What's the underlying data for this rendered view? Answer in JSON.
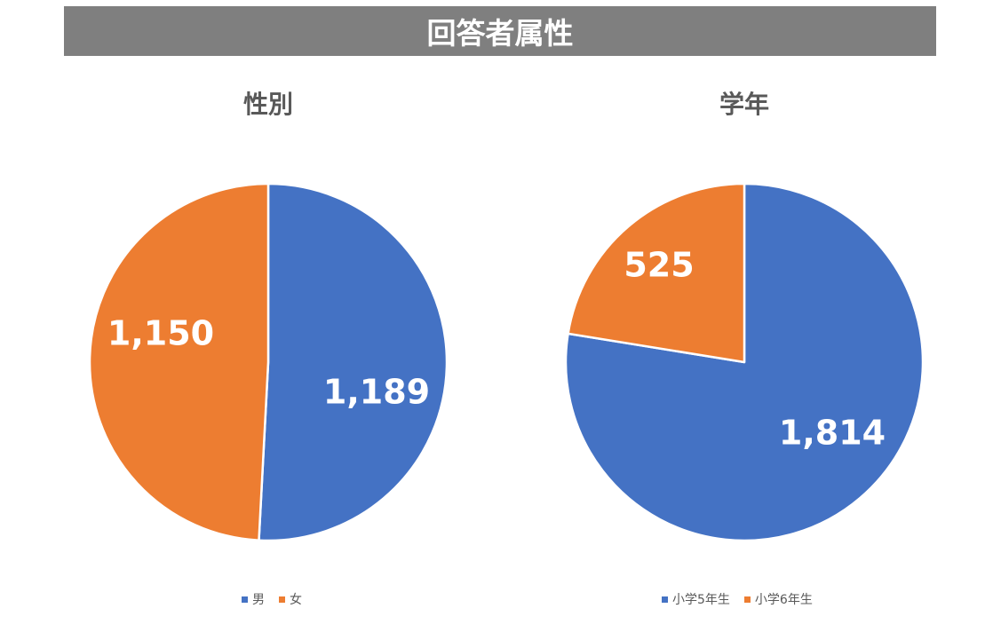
{
  "header": {
    "title": "回答者属性"
  },
  "colors": {
    "blue": "#4472c4",
    "orange": "#ed7d31",
    "banner": "#7f7f7f",
    "label": "#ffffff"
  },
  "chart_data": [
    {
      "type": "pie",
      "title": "性別",
      "categories": [
        "男",
        "女"
      ],
      "values": [
        1189,
        1150
      ],
      "data_labels": [
        "1,189",
        "1,150"
      ],
      "colors": [
        "#4472c4",
        "#ed7d31"
      ],
      "start_angle_deg": 0,
      "direction": "clockwise",
      "legend_position": "bottom"
    },
    {
      "type": "pie",
      "title": "学年",
      "categories": [
        "小学5年生",
        "小学6年生"
      ],
      "values": [
        1814,
        525
      ],
      "data_labels": [
        "1,814",
        "525"
      ],
      "colors": [
        "#4472c4",
        "#ed7d31"
      ],
      "start_angle_deg": 0,
      "direction": "clockwise",
      "legend_position": "bottom"
    }
  ]
}
